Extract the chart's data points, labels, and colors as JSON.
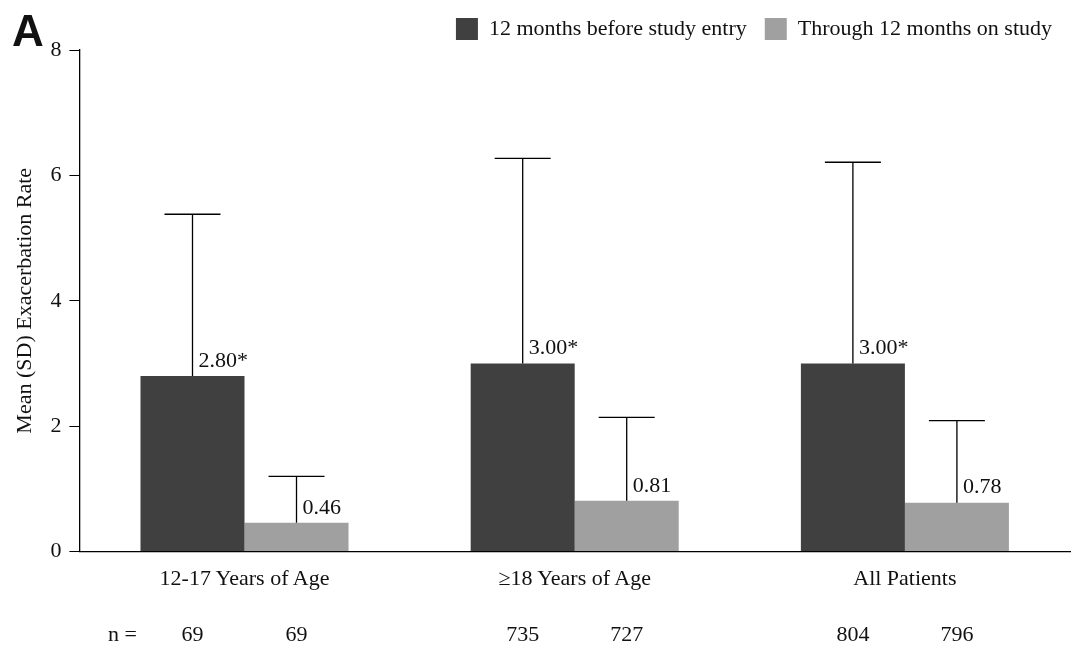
{
  "chart_data": {
    "type": "bar",
    "title": "A",
    "ylabel": "Mean (SD) Exacerbation Rate",
    "categories": [
      "12-17 Years of Age",
      "≥18 Years of Age",
      "All Patients"
    ],
    "series": [
      {
        "name": "12 months before study entry",
        "color": "#404040",
        "values": [
          2.8,
          3.0,
          3.0
        ],
        "errors": [
          [
            2.8,
            5.38
          ],
          [
            3.0,
            6.27
          ],
          [
            3.0,
            6.21
          ]
        ],
        "value_labels": [
          "2.80*",
          "3.00*",
          "3.00*"
        ]
      },
      {
        "name": "Through 12 months on study",
        "color": "#a0a0a0",
        "values": [
          0.46,
          0.81,
          0.78
        ],
        "errors": [
          [
            0.46,
            1.2
          ],
          [
            0.81,
            2.14
          ],
          [
            0.78,
            2.09
          ]
        ],
        "value_labels": [
          "0.46",
          "0.81",
          "0.78"
        ]
      }
    ],
    "ylim": [
      0,
      8
    ],
    "yticks": [
      0,
      2,
      4,
      6,
      8
    ],
    "grid": false,
    "legend": "top right",
    "annotations": [
      "n =",
      "69",
      "69",
      "735",
      "727",
      "804",
      "796"
    ]
  }
}
